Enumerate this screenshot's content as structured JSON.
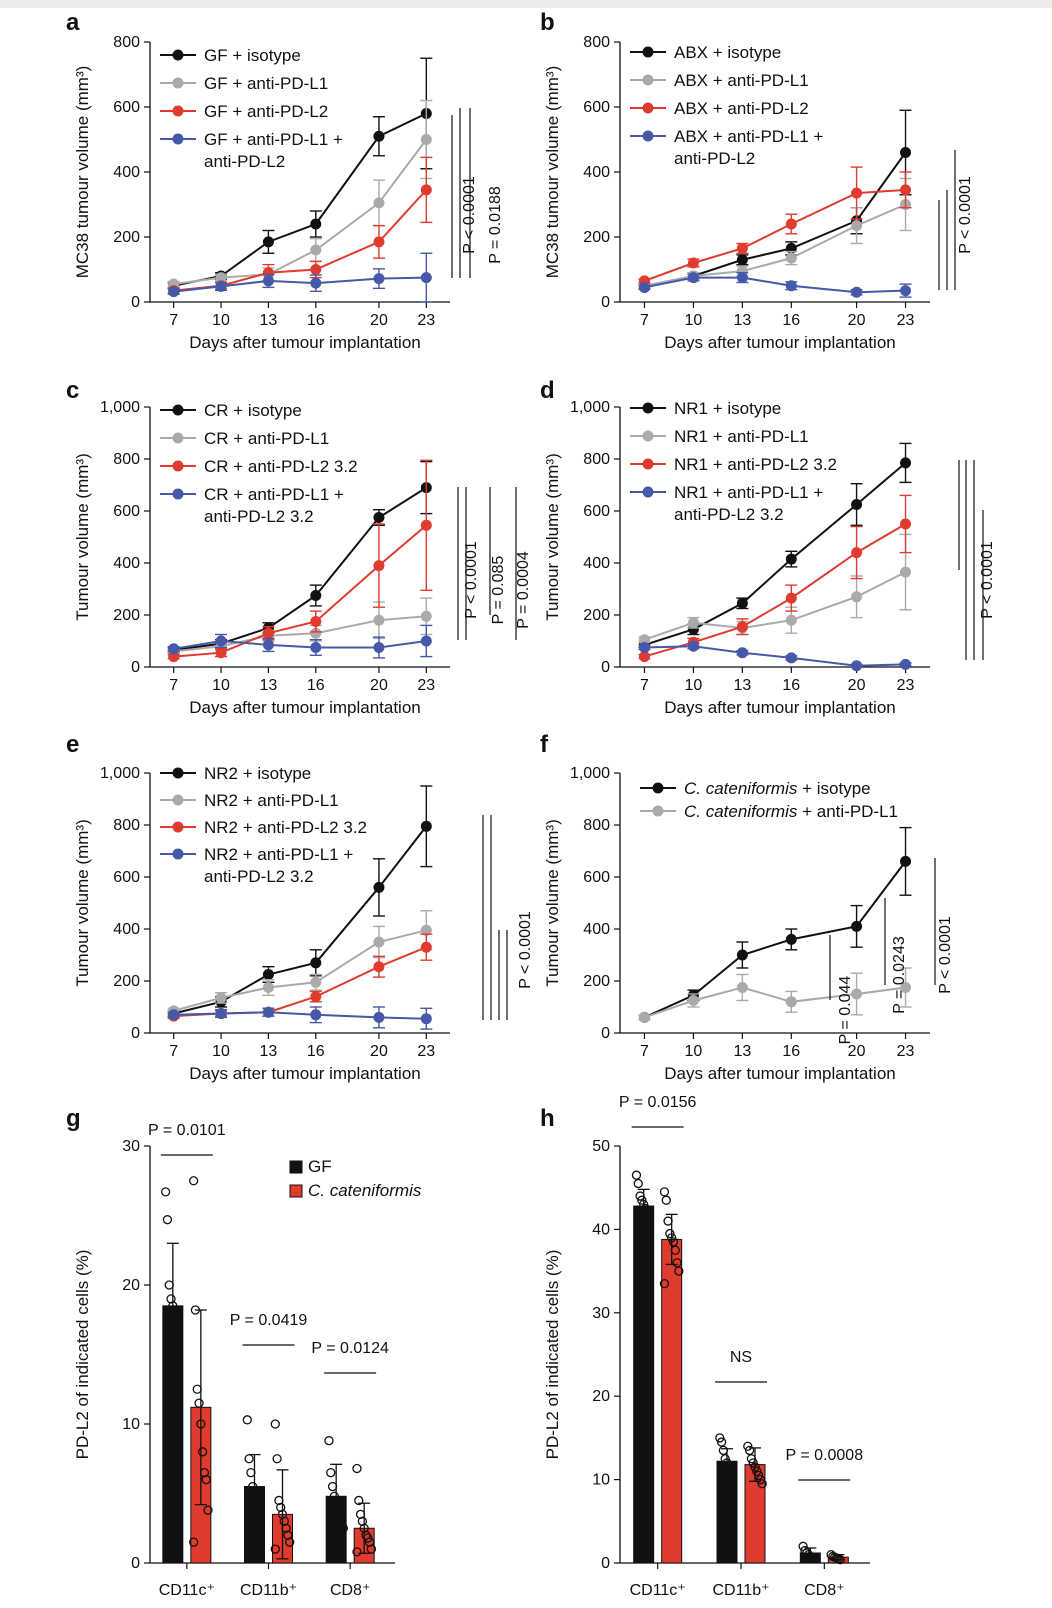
{
  "colors": {
    "black": "#111111",
    "grey": "#aaaaaa",
    "red": "#e03b2f",
    "blue": "#4658a8",
    "bar_black": "#111111",
    "bar_red": "#e03b2f"
  },
  "chart_data": [
    {
      "id": "a",
      "type": "line",
      "letter": "a",
      "ylabel": "MC38 tumour volume (mm³)",
      "xlabel": "Days after tumour implantation",
      "x": [
        7,
        10,
        13,
        16,
        20,
        23
      ],
      "ylim": [
        0,
        800
      ],
      "yticks": [
        "0",
        "200",
        "400",
        "600",
        "800"
      ],
      "series": [
        {
          "name": "GF + isotype",
          "color": "black",
          "values": [
            50,
            80,
            185,
            240,
            510,
            580
          ],
          "err": [
            8,
            10,
            35,
            40,
            60,
            170
          ]
        },
        {
          "name": "GF + anti-PD-L1",
          "color": "grey",
          "values": [
            55,
            75,
            85,
            160,
            305,
            500
          ],
          "err": [
            8,
            10,
            20,
            35,
            70,
            120
          ]
        },
        {
          "name": "GF + anti-PD-L2",
          "color": "red",
          "values": [
            35,
            50,
            90,
            100,
            185,
            345
          ],
          "err": [
            8,
            10,
            25,
            25,
            50,
            100
          ]
        },
        {
          "name": "GF + anti-PD-L1 + anti-PD-L2",
          "legend_lines": [
            "GF + anti-PD-L1 +",
            "anti-PD-L2"
          ],
          "color": "blue",
          "values": [
            32,
            48,
            65,
            58,
            72,
            75
          ],
          "err": [
            8,
            12,
            20,
            25,
            30,
            75
          ]
        }
      ],
      "pvalues": [
        "P < 0.0001",
        "P = 0.0188"
      ]
    },
    {
      "id": "b",
      "type": "line",
      "letter": "b",
      "ylabel": "MC38 tumour volume (mm³)",
      "xlabel": "Days after tumour implantation",
      "x": [
        7,
        10,
        13,
        16,
        20,
        23
      ],
      "ylim": [
        0,
        800
      ],
      "yticks": [
        "0",
        "200",
        "400",
        "600",
        "800"
      ],
      "series": [
        {
          "name": "ABX + isotype",
          "color": "black",
          "values": [
            45,
            80,
            130,
            165,
            250,
            460
          ],
          "err": [
            6,
            10,
            15,
            20,
            40,
            130
          ]
        },
        {
          "name": "ABX + anti-PD-L1",
          "color": "grey",
          "values": [
            50,
            80,
            95,
            135,
            235,
            300
          ],
          "err": [
            6,
            10,
            15,
            20,
            55,
            80
          ]
        },
        {
          "name": "ABX + anti-PD-L2",
          "color": "red",
          "values": [
            65,
            120,
            165,
            240,
            335,
            345
          ],
          "err": [
            6,
            12,
            15,
            30,
            80,
            55
          ]
        },
        {
          "name": "ABX + anti-PD-L1 + anti-PD-L2",
          "legend_lines": [
            "ABX + anti-PD-L1 +",
            "anti-PD-L2"
          ],
          "color": "blue",
          "values": [
            45,
            75,
            75,
            50,
            30,
            35
          ],
          "err": [
            6,
            10,
            15,
            12,
            8,
            20
          ]
        }
      ],
      "pvalues": [
        "P < 0.0001"
      ]
    },
    {
      "id": "c",
      "type": "line",
      "letter": "c",
      "ylabel": "Tumour volume (mm³)",
      "xlabel": "Days after tumour implantation",
      "x": [
        7,
        10,
        13,
        16,
        20,
        23
      ],
      "ylim": [
        0,
        1000
      ],
      "yticks": [
        "0",
        "200",
        "400",
        "600",
        "800",
        "1,000"
      ],
      "series": [
        {
          "name": "CR + isotype",
          "color": "black",
          "values": [
            65,
            90,
            150,
            275,
            575,
            690
          ],
          "err": [
            8,
            15,
            20,
            40,
            30,
            100
          ]
        },
        {
          "name": "CR + anti-PD-L1",
          "color": "grey",
          "values": [
            60,
            80,
            120,
            130,
            180,
            195
          ],
          "err": [
            8,
            15,
            20,
            30,
            70,
            70
          ]
        },
        {
          "name": "CR + anti-PD-L2 3.2",
          "color": "red",
          "values": [
            40,
            55,
            130,
            175,
            390,
            545
          ],
          "err": [
            8,
            15,
            25,
            40,
            160,
            250
          ]
        },
        {
          "name": "CR + anti-PD-L1 + anti-PD-L2 3.2",
          "legend_lines": [
            "CR + anti-PD-L1 +",
            "anti-PD-L2 3.2"
          ],
          "color": "blue",
          "values": [
            70,
            100,
            85,
            75,
            75,
            100
          ],
          "err": [
            8,
            25,
            25,
            30,
            40,
            60
          ]
        }
      ],
      "pvalues": [
        "P < 0.0001",
        "P = 0.085",
        "P = 0.0004"
      ]
    },
    {
      "id": "d",
      "type": "line",
      "letter": "d",
      "ylabel": "Tumour volume (mm³)",
      "xlabel": "Days after tumour implantation",
      "x": [
        7,
        10,
        13,
        16,
        20,
        23
      ],
      "ylim": [
        0,
        1000
      ],
      "yticks": [
        "0",
        "200",
        "400",
        "600",
        "800",
        "1,000"
      ],
      "series": [
        {
          "name": "NR1 + isotype",
          "color": "black",
          "values": [
            85,
            145,
            245,
            415,
            625,
            785
          ],
          "err": [
            10,
            20,
            20,
            30,
            80,
            75
          ]
        },
        {
          "name": "NR1 + anti-PD-L1",
          "color": "grey",
          "values": [
            105,
            170,
            150,
            180,
            270,
            365
          ],
          "err": [
            10,
            20,
            25,
            50,
            80,
            145
          ]
        },
        {
          "name": "NR1 + anti-PD-L2 3.2",
          "color": "red",
          "values": [
            40,
            95,
            155,
            265,
            440,
            550
          ],
          "err": [
            8,
            15,
            30,
            50,
            100,
            110
          ]
        },
        {
          "name": "NR1 + anti-PD-L1 + anti-PD-L2 3.2",
          "legend_lines": [
            "NR1 + anti-PD-L1 +",
            "anti-PD-L2 3.2"
          ],
          "color": "blue",
          "values": [
            75,
            80,
            55,
            35,
            5,
            10
          ],
          "err": [
            8,
            10,
            8,
            8,
            5,
            5
          ]
        }
      ],
      "pvalues": [
        "P < 0.0001"
      ]
    },
    {
      "id": "e",
      "type": "line",
      "letter": "e",
      "ylabel": "Tumour volume (mm³)",
      "xlabel": "Days after tumour implantation",
      "x": [
        7,
        10,
        13,
        16,
        20,
        23
      ],
      "ylim": [
        0,
        1000
      ],
      "yticks": [
        "0",
        "200",
        "400",
        "600",
        "800",
        "1,000"
      ],
      "series": [
        {
          "name": "NR2 + isotype",
          "color": "black",
          "values": [
            75,
            120,
            225,
            270,
            560,
            795
          ],
          "err": [
            10,
            20,
            30,
            50,
            110,
            155
          ]
        },
        {
          "name": "NR2 + anti-PD-L1",
          "color": "grey",
          "values": [
            85,
            135,
            175,
            195,
            350,
            395
          ],
          "err": [
            10,
            20,
            30,
            30,
            60,
            75
          ]
        },
        {
          "name": "NR2 + anti-PD-L2 3.2",
          "color": "red",
          "values": [
            65,
            75,
            80,
            140,
            255,
            330
          ],
          "err": [
            8,
            10,
            15,
            20,
            40,
            50
          ]
        },
        {
          "name": "NR2 + anti-PD-L1 + anti-PD-L2 3.2",
          "legend_lines": [
            "NR2 + anti-PD-L1 +",
            "anti-PD-L2 3.2"
          ],
          "color": "blue",
          "values": [
            70,
            75,
            80,
            70,
            60,
            55
          ],
          "err": [
            8,
            15,
            15,
            30,
            40,
            40
          ]
        }
      ],
      "pvalues": [
        "P < 0.0001"
      ]
    },
    {
      "id": "f",
      "type": "line",
      "letter": "f",
      "ylabel": "Tumour volume (mm³)",
      "xlabel": "Days after tumour implantation",
      "x": [
        7,
        10,
        13,
        16,
        20,
        23
      ],
      "ylim": [
        0,
        1000
      ],
      "yticks": [
        "0",
        "200",
        "400",
        "600",
        "800",
        "1,000"
      ],
      "series": [
        {
          "name": "C. cateniformis + isotype",
          "name_italic": "C. cateniformis",
          "name_rest": " + isotype",
          "color": "black",
          "values": [
            60,
            145,
            300,
            360,
            410,
            660
          ],
          "err": [
            8,
            20,
            50,
            40,
            80,
            130
          ]
        },
        {
          "name": "C. cateniformis + anti-PD-L1",
          "name_italic": "C. cateniformis",
          "name_rest": " + anti-PD-L1",
          "color": "grey",
          "values": [
            60,
            125,
            175,
            120,
            150,
            175
          ],
          "err": [
            8,
            25,
            50,
            40,
            80,
            75
          ]
        }
      ],
      "pvalues": [
        "P = 0.044",
        "P = 0.0243",
        "P < 0.0001"
      ]
    },
    {
      "id": "g",
      "type": "bar",
      "letter": "g",
      "ylabel": "PD-L2 of indicated cells (%)",
      "categories": [
        "CD11c⁺",
        "CD11b⁺",
        "CD8⁺"
      ],
      "ylim": [
        0,
        30
      ],
      "yticks": [
        "0",
        "10",
        "20",
        "30"
      ],
      "series": [
        {
          "name": "GF",
          "color": "bar_black",
          "values": [
            18.5,
            5.5,
            4.8
          ],
          "err": [
            4.5,
            2.3,
            2.3
          ],
          "points": [
            [
              26.7,
              24.7,
              20.0,
              19.0,
              18.5,
              18.2,
              17.8,
              17.5
            ],
            [
              10.3,
              7.5,
              6.5,
              5.5,
              4.5,
              3.8,
              3.5,
              3.0
            ],
            [
              8.8,
              6.5,
              5.5,
              4.8,
              4.2,
              3.8,
              3.5,
              3.0,
              2.5
            ]
          ]
        },
        {
          "name": "C. cateniformis",
          "color": "bar_red",
          "values": [
            11.2,
            3.5,
            2.5
          ],
          "err": [
            7.0,
            3.2,
            1.8
          ],
          "points": [
            [
              27.5,
              18.2,
              12.5,
              11.5,
              10.0,
              8.0,
              6.5,
              6.0,
              3.8,
              1.5
            ],
            [
              10.0,
              7.5,
              4.5,
              4.0,
              3.5,
              3.0,
              2.5,
              2.0,
              1.5,
              1.0
            ],
            [
              6.8,
              4.5,
              3.5,
              3.0,
              2.5,
              2.0,
              1.8,
              1.5,
              1.0,
              0.8
            ]
          ]
        }
      ],
      "pvalues": [
        "P = 0.0101",
        "P = 0.0419",
        "P = 0.0124"
      ]
    },
    {
      "id": "h",
      "type": "bar",
      "letter": "h",
      "ylabel": "PD-L2 of indicated cells (%)",
      "categories": [
        "CD11c⁺",
        "CD11b⁺",
        "CD8⁺"
      ],
      "ylim": [
        0,
        50
      ],
      "yticks": [
        "0",
        "10",
        "20",
        "30",
        "40",
        "50"
      ],
      "series": [
        {
          "name": "GF",
          "color": "bar_black",
          "values": [
            42.8,
            12.2,
            1.2
          ],
          "err": [
            2.0,
            1.5,
            0.6
          ],
          "points": [
            [
              46.5,
              45.5,
              44.0,
              43.5,
              43.0,
              42.5,
              42.0
            ],
            [
              15.0,
              14.5,
              13.5,
              12.5,
              12.0,
              11.5,
              11.0
            ],
            [
              2.0,
              1.5,
              1.2,
              1.0,
              0.8,
              0.5
            ]
          ]
        },
        {
          "name": "C. cateniformis",
          "color": "bar_red",
          "values": [
            38.8,
            11.8,
            0.7
          ],
          "err": [
            3.0,
            2.0,
            0.3
          ],
          "points": [
            [
              44.5,
              43.5,
              41.0,
              39.5,
              39.0,
              38.5,
              37.5,
              36.0,
              35.0,
              33.5
            ],
            [
              14.0,
              13.5,
              12.5,
              12.0,
              11.5,
              11.0,
              10.5,
              10.0,
              9.5
            ],
            [
              1.0,
              0.8,
              0.7,
              0.6,
              0.5,
              0.4
            ]
          ]
        }
      ],
      "pvalues": [
        "P = 0.0156",
        "NS",
        "P = 0.0008"
      ]
    }
  ]
}
